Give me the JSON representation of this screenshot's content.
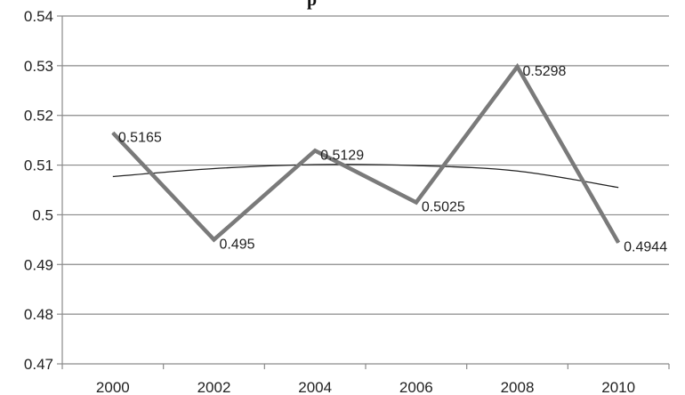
{
  "chart_data": {
    "type": "line",
    "title": "",
    "title_fragment": "p",
    "xlabel": "",
    "ylabel": "",
    "x": [
      2000,
      2002,
      2004,
      2006,
      2008,
      2010
    ],
    "x_tick_labels": [
      "2000",
      "2002",
      "2004",
      "2006",
      "2008",
      "2010"
    ],
    "y_tick_labels": [
      "0.54",
      "0.53",
      "0.52",
      "0.51",
      "0.5",
      "0.49",
      "0.48",
      "0.47"
    ],
    "ylim": [
      0.47,
      0.54
    ],
    "y_ticks": [
      0.47,
      0.48,
      0.49,
      0.5,
      0.51,
      0.52,
      0.53,
      0.54
    ],
    "grid": "horizontal",
    "series": [
      {
        "values": [
          0.5165,
          0.495,
          0.5129,
          0.5025,
          0.5298,
          0.4944
        ],
        "data_labels": [
          "0.5165",
          "0.495",
          "0.5129",
          "0.5025",
          "0.5298",
          "0.4944"
        ],
        "color": "#7a7a7a"
      }
    ],
    "trendline": {
      "type": "polynomial",
      "x": [
        2000,
        2002,
        2004,
        2006,
        2008,
        2010
      ],
      "values": [
        0.5077,
        0.5093,
        0.5101,
        0.5099,
        0.5088,
        0.5055
      ],
      "color": "#222222"
    }
  }
}
